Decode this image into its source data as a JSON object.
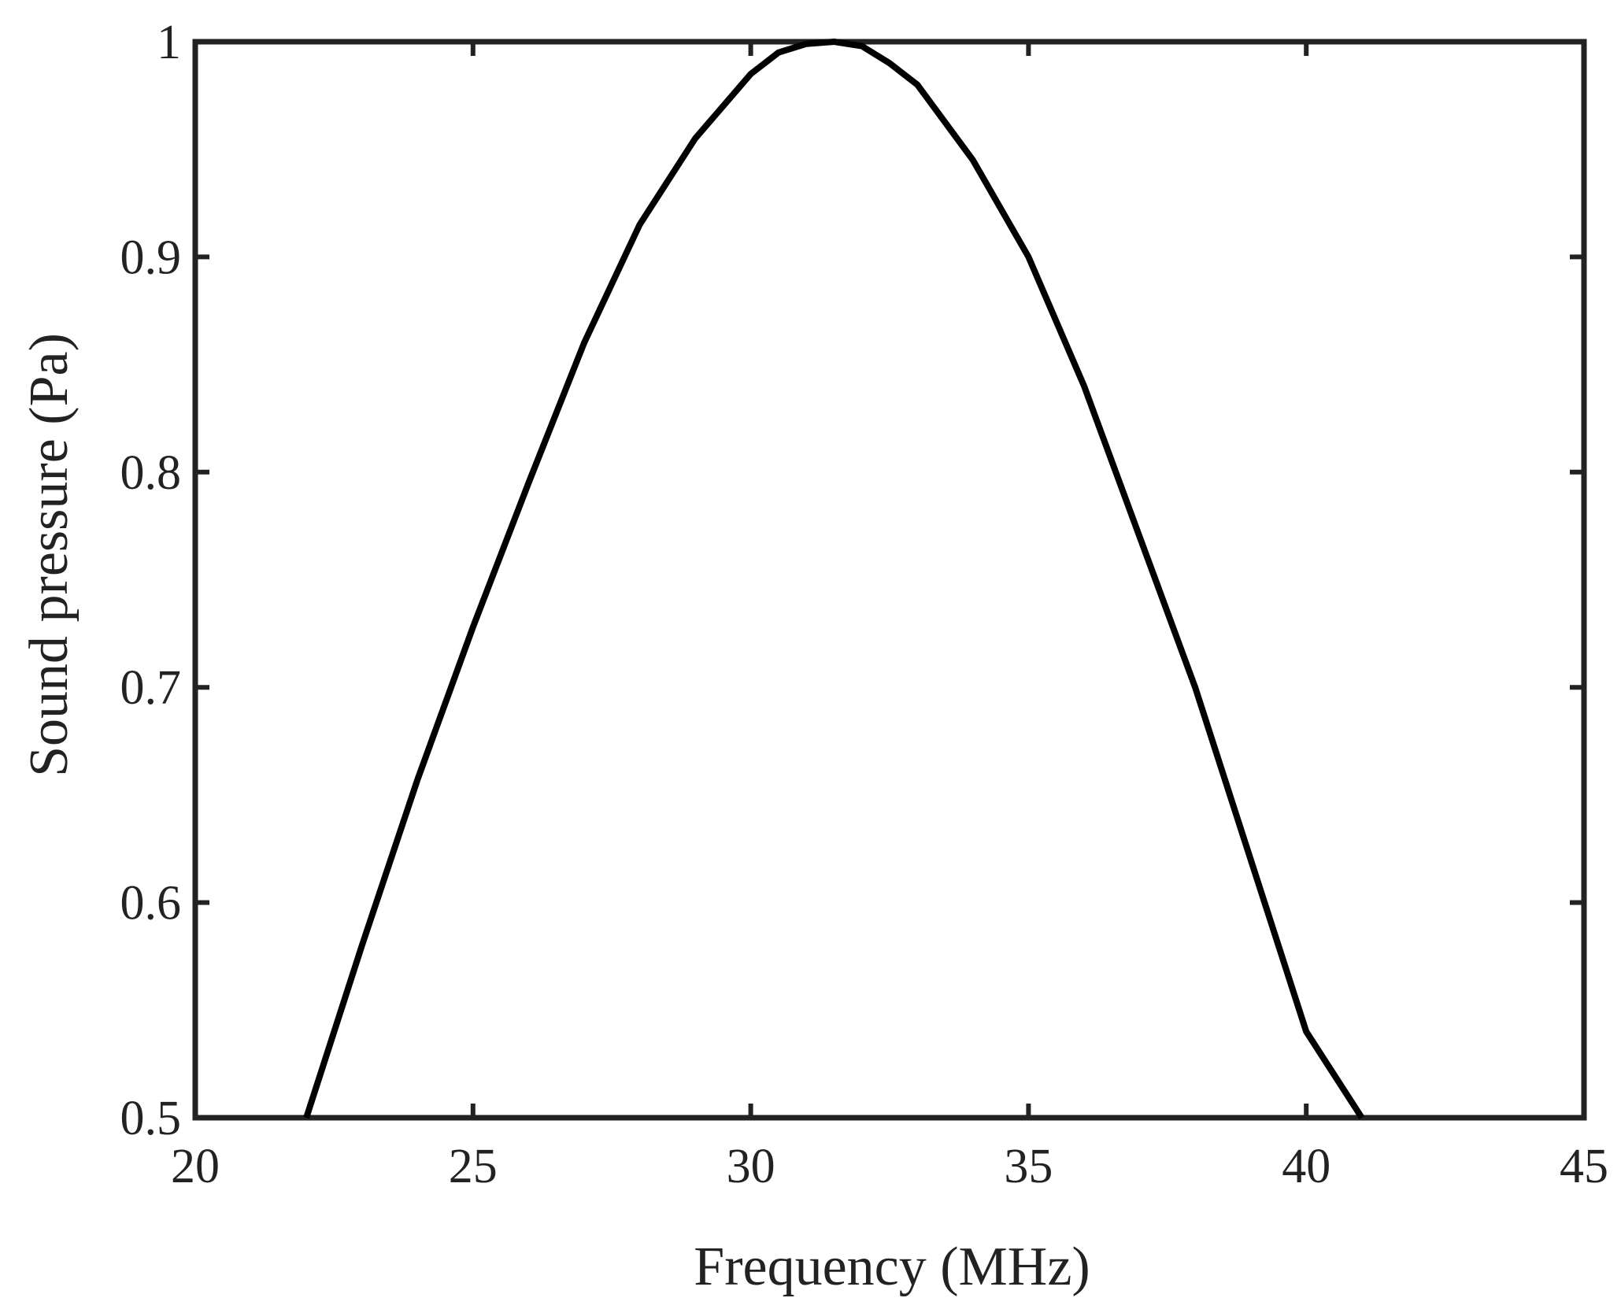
{
  "chart_data": {
    "type": "line",
    "xlabel": "Frequency (MHz)",
    "ylabel": "Sound pressure (Pa)",
    "xlim": [
      20,
      45
    ],
    "ylim": [
      0.5,
      1
    ],
    "xticks": [
      "20",
      "25",
      "30",
      "35",
      "40",
      "45"
    ],
    "yticks": [
      "0.5",
      "0.6",
      "0.7",
      "0.8",
      "0.9",
      "1"
    ],
    "grid": false,
    "line_color": "#000000",
    "series": [
      {
        "x": [
          22.0,
          23.0,
          24.0,
          25.0,
          26.0,
          27.0,
          28.0,
          29.0,
          30.0,
          30.5,
          31.0,
          31.5,
          32.0,
          32.5,
          33.0,
          34.0,
          35.0,
          36.0,
          37.0,
          38.0,
          39.0,
          40.0,
          41.0
        ],
        "y": [
          0.5,
          0.58,
          0.657,
          0.728,
          0.795,
          0.86,
          0.915,
          0.955,
          0.985,
          0.995,
          0.999,
          1.0,
          0.998,
          0.99,
          0.98,
          0.945,
          0.9,
          0.84,
          0.77,
          0.7,
          0.62,
          0.54,
          0.5
        ]
      }
    ]
  }
}
